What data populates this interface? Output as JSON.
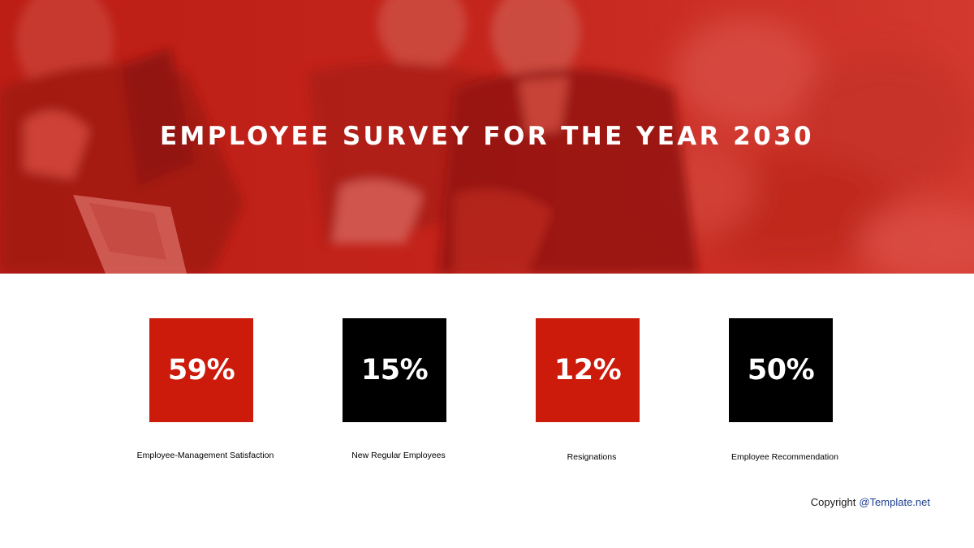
{
  "slide": {
    "title": "EMPLOYEE SURVEY FOR THE YEAR 2030",
    "colors": {
      "accent_red": "#cc1a0b",
      "hero_tint": "#c8221a",
      "card_black": "#000000",
      "text_white": "#ffffff",
      "brand_blue": "#1d3f8f"
    }
  },
  "stats": [
    {
      "value": "59%",
      "label": "Employee-Management Satisfaction",
      "color": "red"
    },
    {
      "value": "15%",
      "label": "New Regular Employees",
      "color": "black"
    },
    {
      "value": "12%",
      "label": "Resignations",
      "color": "red"
    },
    {
      "value": "50%",
      "label": "Employee Recommendation",
      "color": "black"
    }
  ],
  "footer": {
    "copyright_label": "Copyright",
    "brand": "@Template.net"
  }
}
